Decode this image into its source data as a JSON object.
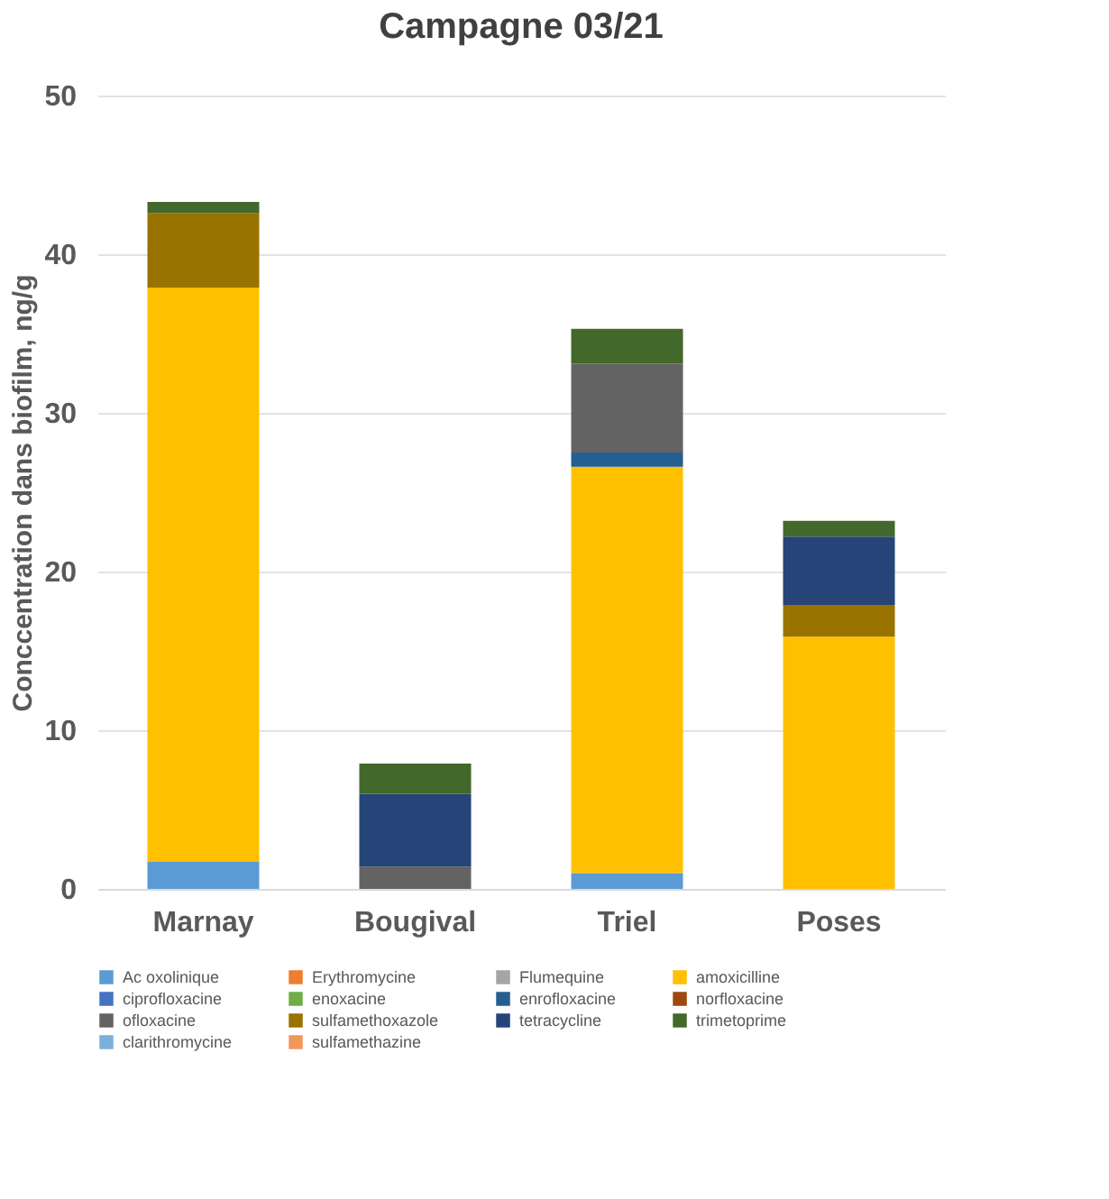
{
  "chart_data": {
    "type": "bar",
    "title": "Campagne 03/21",
    "ylabel": "Conccentration dans biofilm, ng/g",
    "stacked": true,
    "categories": [
      "Marnay",
      "Bougival",
      "Triel",
      "Poses"
    ],
    "ylim": [
      0,
      50
    ],
    "yticks": [
      0,
      10,
      20,
      30,
      40,
      50
    ],
    "grid": "y",
    "legend": "bottom",
    "series": [
      {
        "name": "Ac oxolinique",
        "color": "#5b9bd5",
        "values": [
          1.7,
          null,
          1.0,
          null
        ]
      },
      {
        "name": "Erythromycine",
        "color": "#ed7d31",
        "values": [
          null,
          null,
          null,
          null
        ]
      },
      {
        "name": "Flumequine",
        "color": "#a5a5a5",
        "values": [
          null,
          null,
          null,
          null
        ]
      },
      {
        "name": "amoxicilline",
        "color": "#ffc000",
        "values": [
          36.2,
          null,
          25.6,
          15.9
        ]
      },
      {
        "name": "ciprofloxacine",
        "color": "#4472c4",
        "values": [
          null,
          null,
          null,
          null
        ]
      },
      {
        "name": "enoxacine",
        "color": "#70ad47",
        "values": [
          null,
          null,
          null,
          null
        ]
      },
      {
        "name": "enrofloxacine",
        "color": "#255e91",
        "values": [
          null,
          null,
          0.9,
          null
        ]
      },
      {
        "name": "norfloxacine",
        "color": "#9e480e",
        "values": [
          null,
          null,
          null,
          null
        ]
      },
      {
        "name": "ofloxacine",
        "color": "#636363",
        "values": [
          null,
          1.4,
          5.6,
          null
        ]
      },
      {
        "name": "sulfamethoxazole",
        "color": "#997300",
        "values": [
          4.7,
          null,
          null,
          2.0
        ]
      },
      {
        "name": "tetracycline",
        "color": "#264478",
        "values": [
          null,
          4.6,
          null,
          4.3
        ]
      },
      {
        "name": "trimetoprime",
        "color": "#43682b",
        "values": [
          0.7,
          1.9,
          2.2,
          1.0
        ]
      },
      {
        "name": "clarithromycine",
        "color": "#7cafdd",
        "values": [
          null,
          null,
          null,
          null
        ]
      },
      {
        "name": "sulfamethazine",
        "color": "#f1975a",
        "values": [
          null,
          null,
          null,
          null
        ]
      }
    ]
  }
}
